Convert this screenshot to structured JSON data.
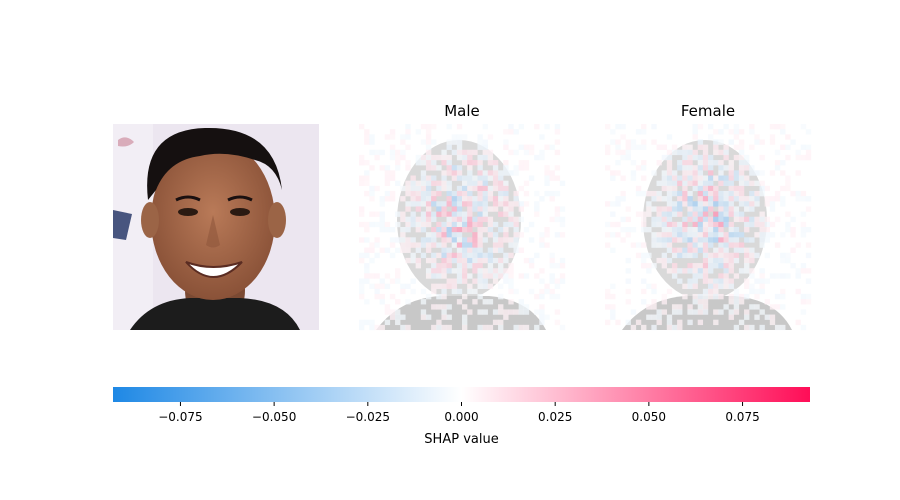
{
  "chart_data": {
    "type": "heatmap",
    "panels": [
      {
        "title": "",
        "kind": "photo"
      },
      {
        "title": "Male",
        "kind": "shap-overlay",
        "polarity": 1
      },
      {
        "title": "Female",
        "kind": "shap-overlay",
        "polarity": -1
      }
    ],
    "colorbar": {
      "label": "SHAP value",
      "range": [
        -0.093,
        0.093
      ],
      "ticks": [
        -0.075,
        -0.05,
        -0.025,
        0.0,
        0.025,
        0.05,
        0.075
      ],
      "tick_labels": [
        "−0.075",
        "−0.050",
        "−0.025",
        "0.000",
        "0.025",
        "0.050",
        "0.075"
      ],
      "negative_color": "#1e88e5",
      "zero_color": "#ffffff",
      "positive_color": "#ff0d57"
    }
  }
}
